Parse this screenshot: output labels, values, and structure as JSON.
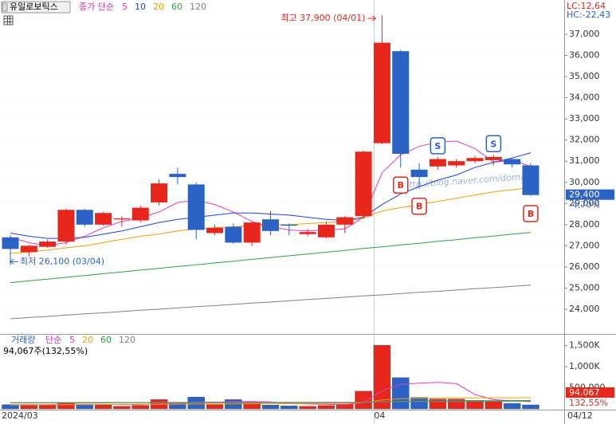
{
  "chart_data": [
    {
      "type": "candlestick",
      "title": "유일로보틱스",
      "legend_label": "종가 단순",
      "open": [
        27400,
        26700,
        26950,
        27200,
        28700,
        28000,
        28250,
        28200,
        29050,
        30400,
        29900,
        27600,
        27900,
        27150,
        28250,
        28000,
        27550,
        27400,
        28000,
        28400,
        31850,
        36200,
        30600,
        30750,
        30800,
        31000,
        31050,
        31100,
        30800
      ],
      "high": [
        27500,
        27050,
        27300,
        28750,
        28750,
        28600,
        28400,
        28900,
        30150,
        30700,
        30000,
        28000,
        28050,
        28150,
        28650,
        28050,
        27800,
        28150,
        28400,
        31500,
        37900,
        36250,
        30900,
        31200,
        31100,
        31250,
        31300,
        31150,
        30900
      ],
      "low": [
        26100,
        26500,
        26900,
        27050,
        27900,
        27950,
        27900,
        28100,
        28900,
        29900,
        27300,
        27500,
        27100,
        27000,
        27500,
        27500,
        27450,
        27350,
        27600,
        28300,
        31800,
        30700,
        29700,
        30600,
        30700,
        30900,
        30800,
        30700,
        29350
      ],
      "close": [
        26850,
        27000,
        27200,
        28700,
        28000,
        28550,
        28300,
        28800,
        29950,
        30250,
        27750,
        27850,
        27150,
        28100,
        27700,
        27950,
        27650,
        28000,
        28350,
        31450,
        36600,
        31350,
        30250,
        31100,
        31000,
        31150,
        31200,
        30850,
        29400
      ],
      "up_color": "#e8261c",
      "down_color": "#2b62c6",
      "series": [
        {
          "name": "5",
          "color": "#e03cc0",
          "values": [
            27400,
            27150,
            27000,
            27150,
            27450,
            27850,
            28150,
            28300,
            28600,
            29050,
            29150,
            28950,
            28600,
            28150,
            27900,
            27750,
            27700,
            27750,
            27800,
            28350,
            30450,
            31300,
            31700,
            31900,
            31950,
            31600,
            30950,
            31050,
            30750
          ]
        },
        {
          "name": "10",
          "color": "#2040e0",
          "values": [
            27600,
            27450,
            27350,
            27350,
            27400,
            27550,
            27700,
            27900,
            28100,
            28250,
            28350,
            28450,
            28550,
            28550,
            28500,
            28450,
            28350,
            28250,
            28200,
            28350,
            28950,
            29450,
            29800,
            30100,
            30350,
            30700,
            30950,
            31150,
            31400
          ]
        },
        {
          "name": "20",
          "color": "#f0a000",
          "values": [
            26650,
            26700,
            26800,
            26900,
            27000,
            27150,
            27300,
            27450,
            27550,
            27700,
            27800,
            27850,
            27900,
            27950,
            28000,
            28000,
            28050,
            28100,
            28150,
            28300,
            28650,
            28800,
            28950,
            29100,
            29250,
            29400,
            29550,
            29650,
            29750
          ]
        },
        {
          "name": "60",
          "color": "#30a040",
          "values": [
            25250,
            25340,
            25420,
            25510,
            25590,
            25680,
            25760,
            25850,
            25930,
            26020,
            26100,
            26190,
            26270,
            26360,
            26440,
            26530,
            26610,
            26700,
            26780,
            26870,
            26950,
            27040,
            27120,
            27210,
            27290,
            27380,
            27460,
            27550,
            27630
          ]
        },
        {
          "name": "120",
          "color": "#808080",
          "values": [
            23550,
            23610,
            23660,
            23720,
            23780,
            23830,
            23890,
            23950,
            24000,
            24060,
            24120,
            24170,
            24230,
            24290,
            24340,
            24400,
            24460,
            24510,
            24570,
            24630,
            24680,
            24740,
            24800,
            24850,
            24910,
            24970,
            25020,
            25080,
            25140
          ]
        }
      ],
      "signals": [
        null,
        null,
        null,
        null,
        null,
        null,
        null,
        null,
        null,
        null,
        null,
        null,
        null,
        null,
        null,
        null,
        null,
        null,
        null,
        null,
        null,
        "B",
        "B",
        "S",
        null,
        null,
        "S",
        null,
        "B"
      ],
      "ylim": [
        22870,
        38620
      ],
      "yticks": [
        {
          "value": 24000,
          "label": "24,000"
        },
        {
          "value": 25000,
          "label": "25,000"
        },
        {
          "value": 26000,
          "label": "26,000"
        },
        {
          "value": 27000,
          "label": "27,000"
        },
        {
          "value": 28000,
          "label": "28,000"
        },
        {
          "value": 29000,
          "label": "29,000"
        },
        {
          "value": 30000,
          "label": "30,000"
        },
        {
          "value": 31000,
          "label": "31,000"
        },
        {
          "value": 32000,
          "label": "32,000"
        },
        {
          "value": 33000,
          "label": "33,000"
        },
        {
          "value": 34000,
          "label": "34,000"
        },
        {
          "value": 35000,
          "label": "35,000"
        },
        {
          "value": 36000,
          "label": "36,000"
        },
        {
          "value": 37000,
          "label": "37,000"
        }
      ],
      "high_text": "최고 37,900 (04/01)",
      "low_text": "최저 26,100 (03/04)",
      "lc": "LC:12,64",
      "hc": "HC:-22,43",
      "last_label": "29,400",
      "change": "-4,70%",
      "watermark": "http://blog.naver.com/dornado"
    },
    {
      "type": "bar",
      "title": "거래량",
      "legend_label": "단순",
      "summary": "94,067주(132,55%)",
      "categories": [
        "2024/03",
        null,
        null,
        null,
        null,
        null,
        null,
        null,
        null,
        null,
        null,
        null,
        null,
        null,
        null,
        null,
        null,
        null,
        null,
        null,
        "04",
        null,
        null,
        null,
        null,
        null,
        null,
        null,
        "04/12"
      ],
      "values": [
        100000,
        80000,
        90000,
        150000,
        110000,
        90000,
        60000,
        80000,
        220000,
        130000,
        280000,
        100000,
        220000,
        140000,
        90000,
        70000,
        60000,
        80000,
        110000,
        420000,
        1510000,
        740000,
        270000,
        230000,
        230000,
        200000,
        180000,
        130000,
        94067
      ],
      "value_labels": [
        null,
        null,
        null,
        null,
        null,
        null,
        null,
        null,
        null,
        null,
        null,
        null,
        null,
        null,
        null,
        null,
        null,
        null,
        null,
        null,
        null,
        null,
        null,
        null,
        null,
        null,
        null,
        null,
        "94,067"
      ],
      "change": "132,55%",
      "series": [
        {
          "name": "5",
          "color": "#e03cc0",
          "values": [
            100000,
            100000,
            100000,
            110000,
            110000,
            105000,
            100000,
            100000,
            120000,
            130000,
            160000,
            160000,
            170000,
            175000,
            165000,
            130000,
            115000,
            110000,
            100000,
            150000,
            430000,
            580000,
            610000,
            630000,
            600000,
            340000,
            220000,
            190000,
            170000
          ]
        },
        {
          "name": "20",
          "color": "#f0a000",
          "values": [
            95000,
            96000,
            97000,
            100000,
            102000,
            104000,
            105000,
            107000,
            110000,
            112000,
            115000,
            117000,
            120000,
            122000,
            124000,
            125000,
            127000,
            128000,
            130000,
            145000,
            210000,
            240000,
            250000,
            255000,
            258000,
            260000,
            262000,
            263000,
            265000
          ]
        },
        {
          "name": "60",
          "color": "#30a040",
          "values": [
            140000,
            140000,
            141000,
            141000,
            142000,
            142000,
            143000,
            143000,
            144000,
            144000,
            145000,
            145000,
            146000,
            146000,
            147000,
            147000,
            148000,
            148000,
            149000,
            152000,
            170000,
            180000,
            183000,
            186000,
            189000,
            192000,
            194000,
            196000,
            198000
          ]
        },
        {
          "name": "120",
          "color": "#808080",
          "values": [
            150000,
            150000,
            150000,
            151000,
            151000,
            151000,
            152000,
            152000,
            152000,
            153000,
            153000,
            153000,
            154000,
            154000,
            154000,
            155000,
            155000,
            155000,
            156000,
            157000,
            166000,
            171000,
            173000,
            175000,
            176000,
            178000,
            179000,
            180000,
            181000
          ]
        }
      ],
      "ylim": [
        0,
        1740000
      ],
      "yticks": [
        {
          "value": 500000,
          "label": "500,000"
        },
        {
          "value": 1000000,
          "label": "1,000K"
        },
        {
          "value": 1500000,
          "label": "1,500K"
        }
      ]
    }
  ]
}
